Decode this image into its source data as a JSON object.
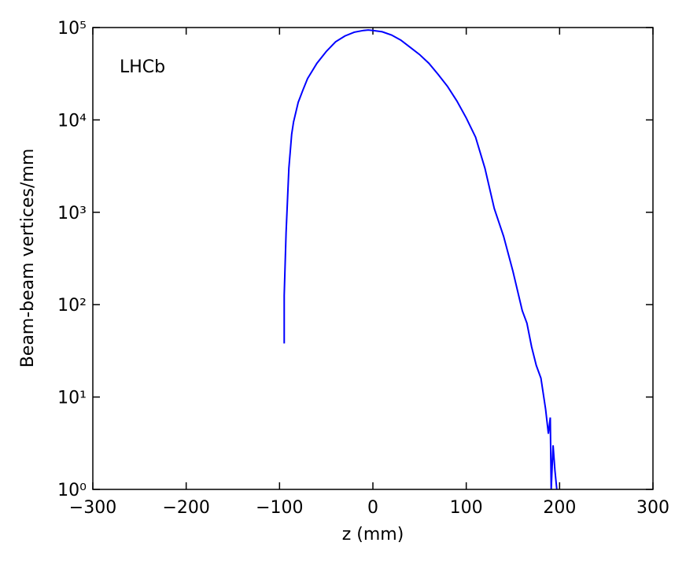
{
  "chart_data": {
    "type": "line",
    "annotation": "LHCb",
    "xlabel": "z (mm)",
    "ylabel": "Beam-beam vertices/mm",
    "log_y": true,
    "color": "#0000ff",
    "xlim": [
      -300,
      300
    ],
    "xticks": [
      {
        "value": -300,
        "label": "−300"
      },
      {
        "value": -200,
        "label": "−200"
      },
      {
        "value": -100,
        "label": "−100"
      },
      0,
      100,
      200,
      300
    ],
    "ylim": [
      1,
      100000
    ],
    "yticks": [
      {
        "value": 1,
        "label": "10⁰"
      },
      {
        "value": 10,
        "label": "10¹"
      },
      {
        "value": 100,
        "label": "10²"
      },
      {
        "value": 1000,
        "label": "10³"
      },
      {
        "value": 10000,
        "label": "10⁴"
      },
      {
        "value": 100000,
        "label": "10⁵"
      }
    ],
    "x": [
      -95,
      -95,
      -93,
      -90,
      -87,
      -85,
      -80,
      -75,
      -70,
      -60,
      -50,
      -40,
      -30,
      -20,
      -10,
      -5,
      0,
      10,
      20,
      30,
      40,
      50,
      60,
      70,
      80,
      90,
      100,
      110,
      120,
      130,
      140,
      150,
      160,
      165,
      170,
      175,
      180,
      185,
      188,
      190,
      191,
      193,
      195,
      197
    ],
    "values": [
      38,
      126,
      600,
      3000,
      7000,
      9500,
      15500,
      21000,
      28000,
      41000,
      55000,
      70000,
      81000,
      89000,
      93000,
      94000,
      93000,
      90000,
      83000,
      73000,
      61000,
      51000,
      41000,
      31000,
      23000,
      16000,
      10500,
      6500,
      3000,
      1100,
      550,
      230,
      86,
      63,
      35,
      22,
      16,
      7.4,
      4,
      6,
      1,
      3,
      1.6,
      1
    ]
  }
}
